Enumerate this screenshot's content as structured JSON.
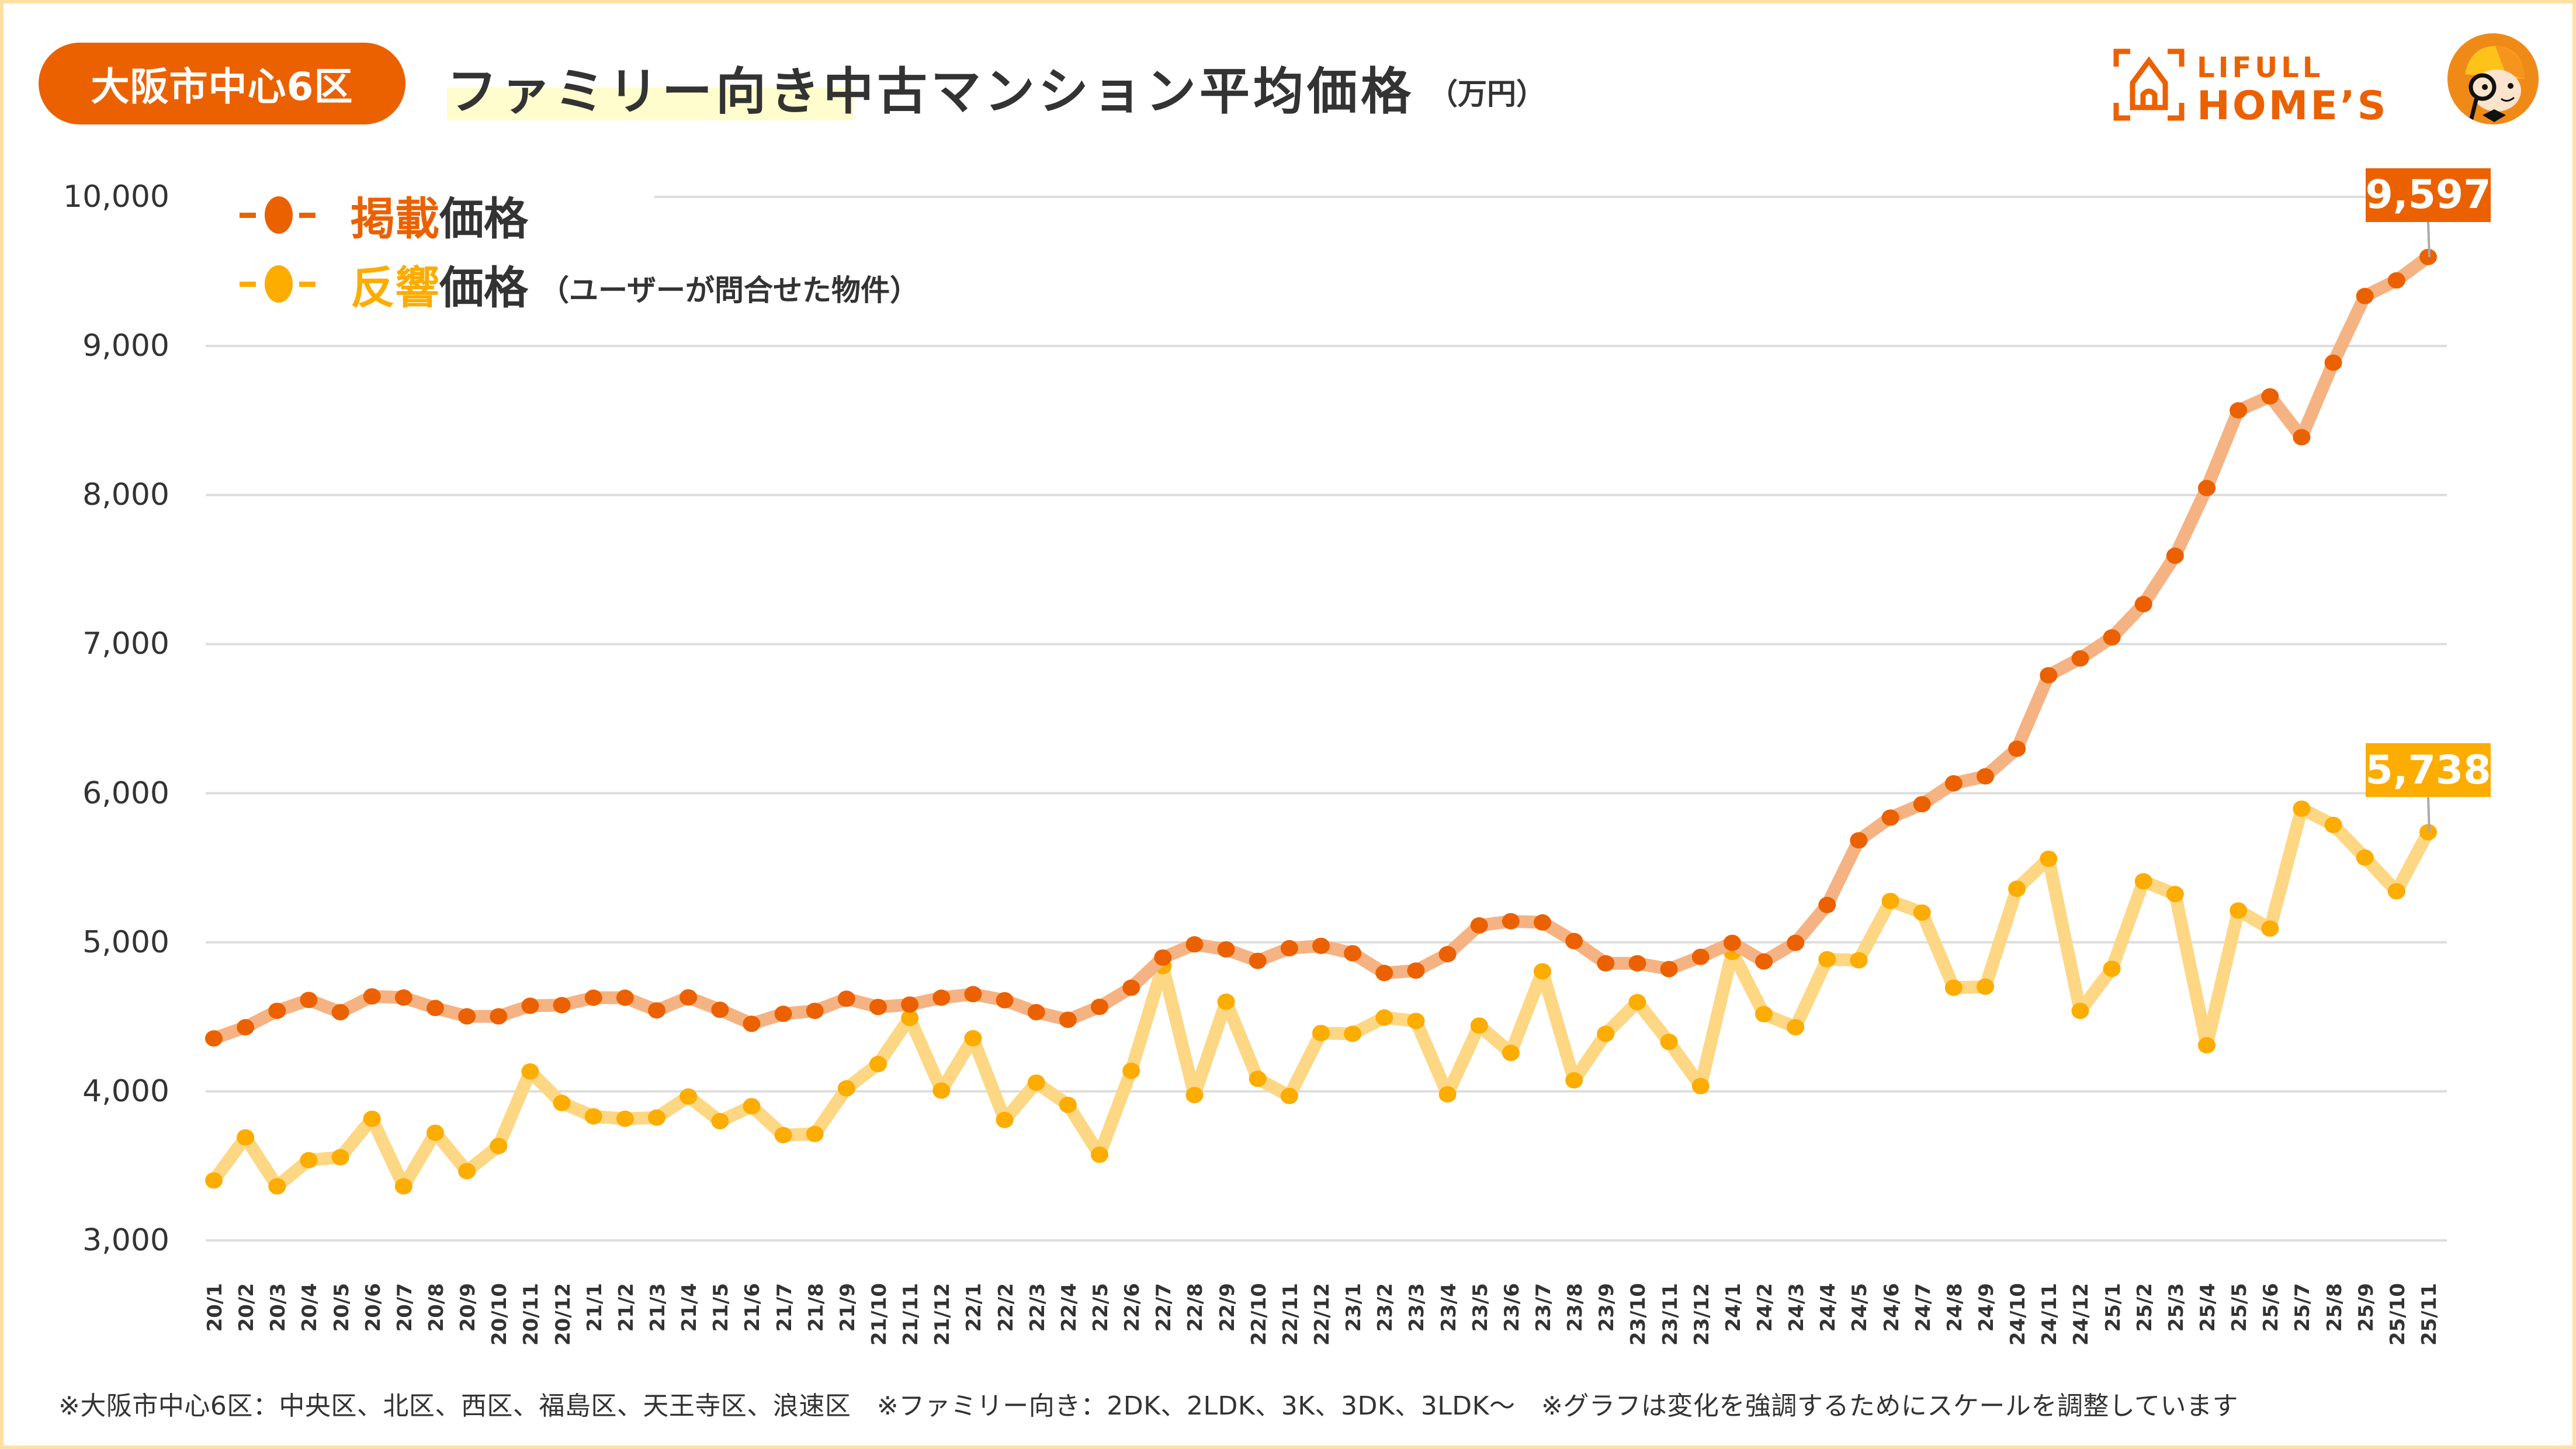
{
  "header": {
    "region_badge": "大阪市中心6区",
    "title": "ファミリー向き中古マンション平均価格",
    "unit": "（万円）",
    "logo_top": "LIFULL",
    "logo_bottom": "HOME’S",
    "logo_icon": "house-frame-icon",
    "mascot_icon": "detective-mascot-icon"
  },
  "colors": {
    "listed": "#EB6100",
    "listed_line": "#F5B383",
    "response": "#FDAC00",
    "response_line": "#FDD784",
    "grid": "#DDDDDD",
    "frame": "#FFE0A3",
    "title_highlight": "#FFFCCD"
  },
  "legend": [
    {
      "highlight": "掲載",
      "rest": "価格",
      "note": ""
    },
    {
      "highlight": "反響",
      "rest": "価格",
      "note": "（ユーザーが問合せた物件）"
    }
  ],
  "footer": "※大阪市中心6区：中央区、北区、西区、福島区、天王寺区、浪速区　※ファミリー向き：2DK、2LDK、3K、3DK、3LDK～　※グラフは変化を強調するためにスケールを調整しています",
  "chart_data": {
    "type": "line",
    "title": "ファミリー向き中古マンション平均価格",
    "ylabel": "万円",
    "xlabel": "",
    "ylim": [
      3000,
      10000
    ],
    "yticks": [
      3000,
      4000,
      5000,
      6000,
      7000,
      8000,
      9000,
      10000
    ],
    "ytick_labels": [
      "3,000",
      "4,000",
      "5,000",
      "6,000",
      "7,000",
      "8,000",
      "9,000",
      "10,000"
    ],
    "grid": true,
    "legend_position": "top-left",
    "x": [
      "20/1",
      "20/2",
      "20/3",
      "20/4",
      "20/5",
      "20/6",
      "20/7",
      "20/8",
      "20/9",
      "20/10",
      "20/11",
      "20/12",
      "21/1",
      "21/2",
      "21/3",
      "21/4",
      "21/5",
      "21/6",
      "21/7",
      "21/8",
      "21/9",
      "21/10",
      "21/11",
      "21/12",
      "22/1",
      "22/2",
      "22/3",
      "22/4",
      "22/5",
      "22/6",
      "22/7",
      "22/8",
      "22/9",
      "22/10",
      "22/11",
      "22/12",
      "23/1",
      "23/2",
      "23/3",
      "23/4",
      "23/5",
      "23/6",
      "23/7",
      "23/8",
      "23/9",
      "23/10",
      "23/11",
      "23/12",
      "24/1",
      "24/2",
      "24/3",
      "24/4",
      "24/5",
      "24/6",
      "24/7",
      "24/8",
      "24/9",
      "24/10",
      "24/11",
      "24/12",
      "25/1",
      "25/2",
      "25/3",
      "25/4",
      "25/5",
      "25/6",
      "25/7",
      "25/8",
      "25/9",
      "25/10",
      "25/11"
    ],
    "series": [
      {
        "name": "掲載価格",
        "values": [
          4355,
          4430,
          4540,
          4613,
          4531,
          4637,
          4629,
          4559,
          4503,
          4503,
          4574,
          4578,
          4628,
          4628,
          4543,
          4630,
          4547,
          4453,
          4520,
          4540,
          4621,
          4566,
          4582,
          4628,
          4652,
          4611,
          4531,
          4480,
          4567,
          4695,
          4897,
          4986,
          4952,
          4875,
          4960,
          4976,
          4926,
          4794,
          4810,
          4920,
          5113,
          5141,
          5133,
          5008,
          4859,
          4859,
          4820,
          4902,
          4996,
          4871,
          4996,
          5250,
          5684,
          5836,
          5926,
          6066,
          6113,
          6298,
          6791,
          6904,
          7045,
          7268,
          7593,
          8047,
          8568,
          8662,
          8388,
          8888,
          9335,
          9440,
          9597
        ],
        "last_label": "9,597"
      },
      {
        "name": "反響価格",
        "values": [
          3402,
          3691,
          3363,
          3538,
          3558,
          3816,
          3363,
          3722,
          3465,
          3633,
          4133,
          3922,
          3832,
          3816,
          3824,
          3965,
          3800,
          3900,
          3706,
          3714,
          4020,
          4183,
          4492,
          4005,
          4356,
          3808,
          4058,
          3909,
          3575,
          4138,
          4840,
          3975,
          4601,
          4084,
          3969,
          4391,
          4386,
          4495,
          4472,
          3980,
          4441,
          4258,
          4805,
          4074,
          4386,
          4598,
          4332,
          4035,
          4936,
          4518,
          4430,
          4886,
          4879,
          5277,
          5199,
          4695,
          4702,
          5359,
          5560,
          4540,
          4822,
          5409,
          5323,
          4309,
          5213,
          5092,
          5896,
          5787,
          5568,
          5342,
          5738
        ],
        "last_label": "5,738"
      }
    ]
  }
}
